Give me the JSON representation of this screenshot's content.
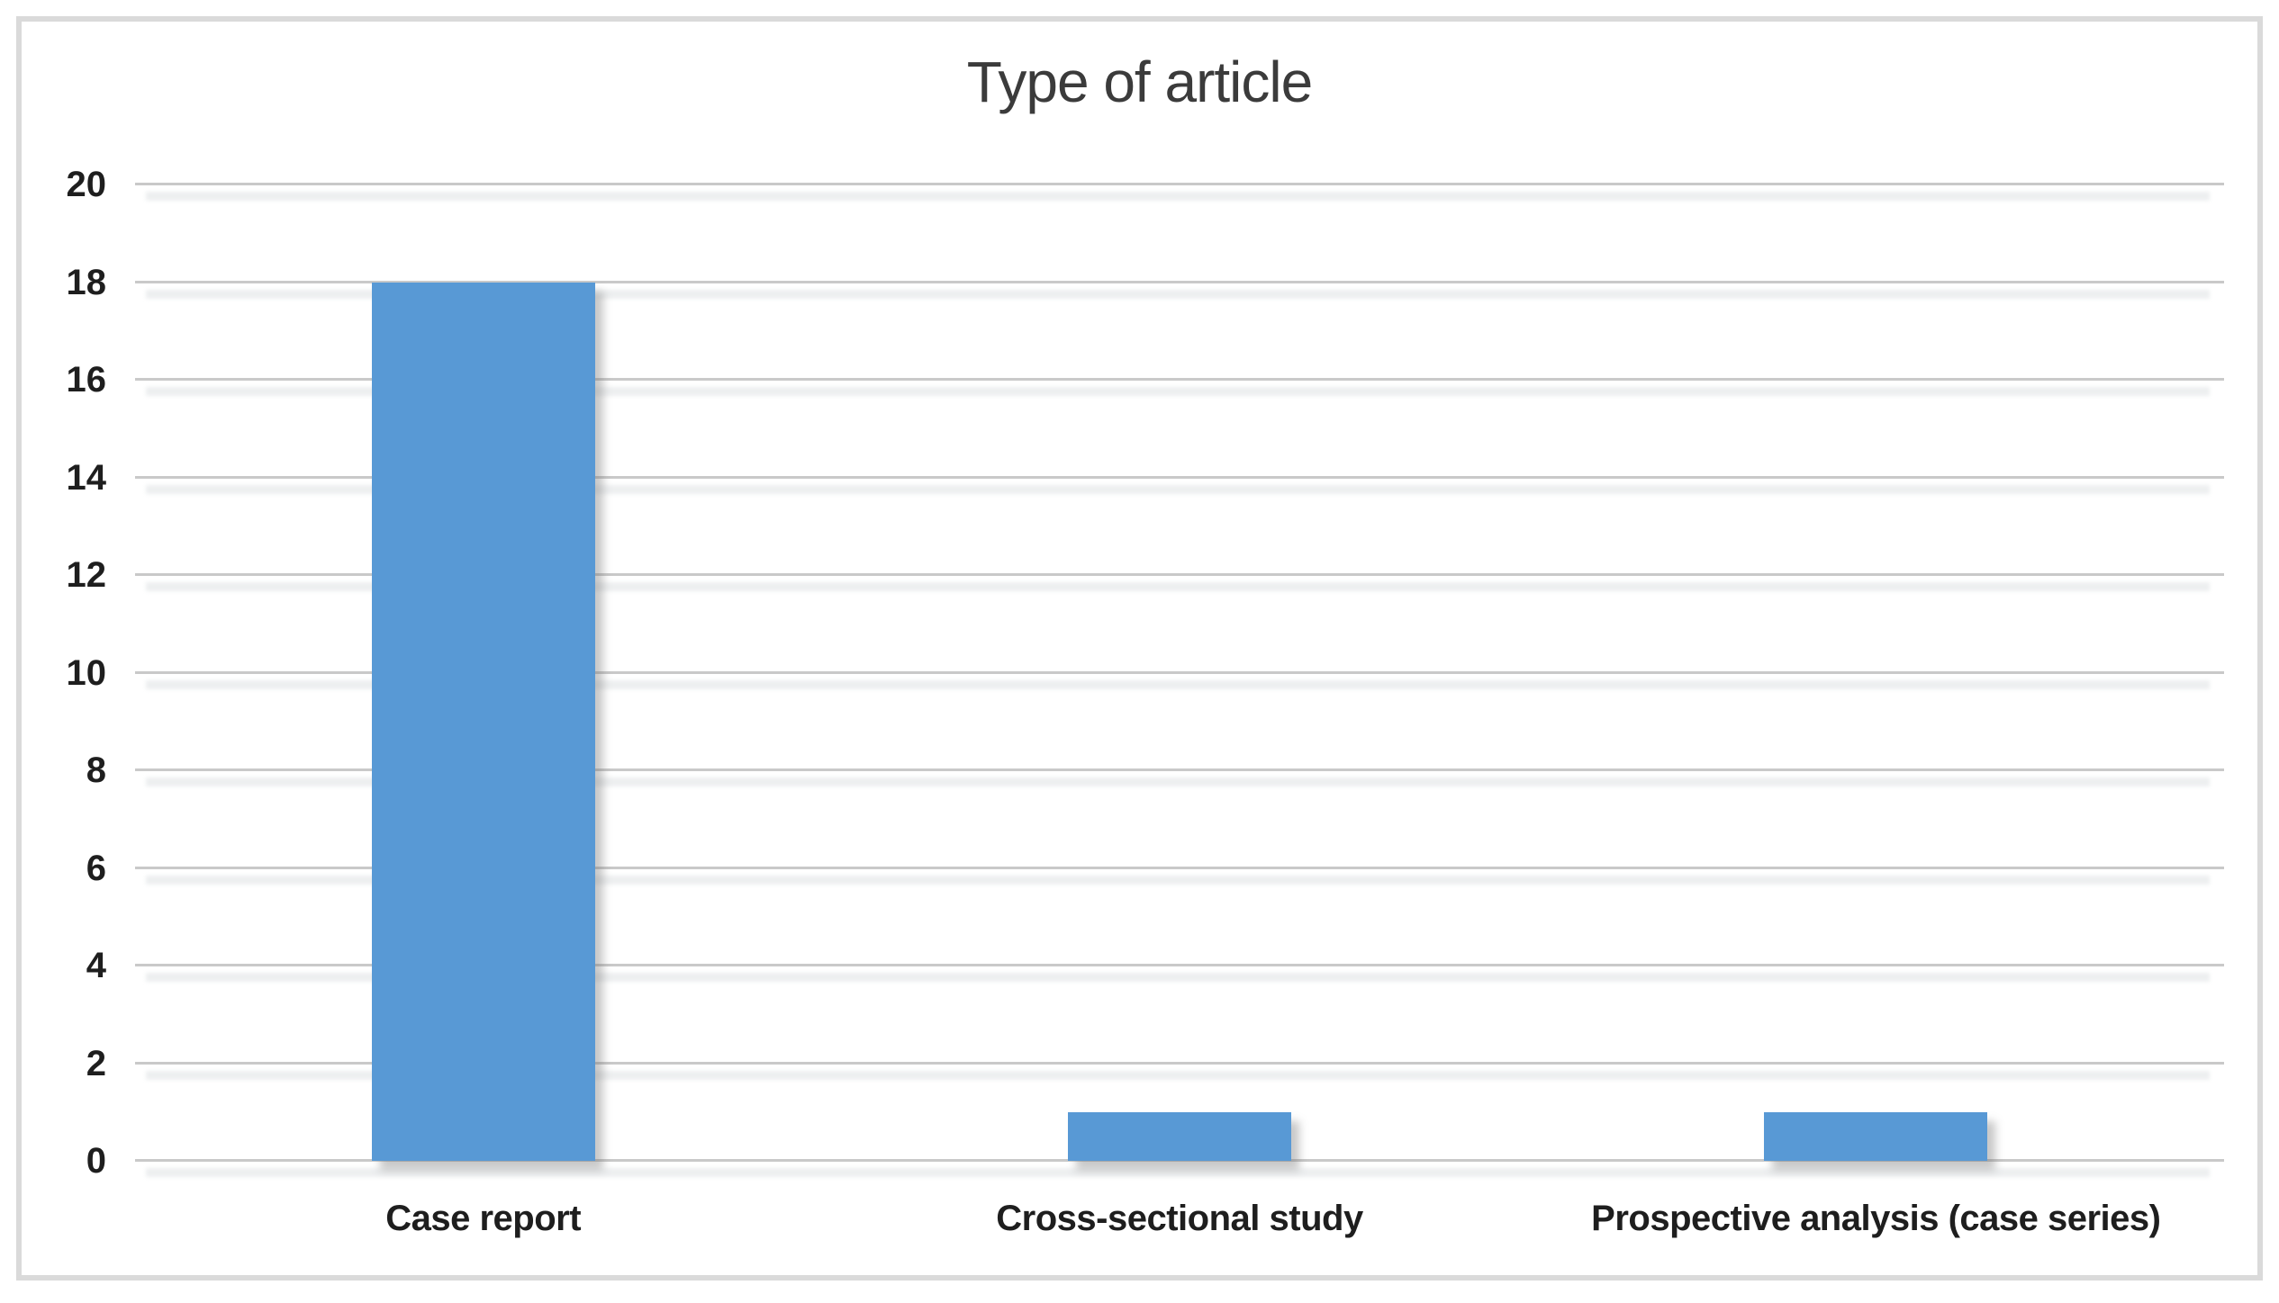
{
  "chart_data": {
    "type": "bar",
    "title": "Type of article",
    "categories": [
      "Case report",
      "Cross-sectional study",
      "Prospective analysis (case series)"
    ],
    "values": [
      18,
      1,
      1
    ],
    "xlabel": "",
    "ylabel": "",
    "ylim": [
      0,
      20
    ],
    "ytick_step": 2,
    "ytick_labels_top_to_bottom": [
      "20",
      "18",
      "16",
      "14",
      "12",
      "10",
      "8",
      "6",
      "4",
      "2",
      "0"
    ],
    "grid": "on",
    "legend": "none",
    "bar_color": "#5899d5",
    "gridline_color": "#c9c9c9",
    "frame_border_color": "#dadada",
    "title_color": "#3b3b3b",
    "label_color": "#1e1e1e"
  }
}
